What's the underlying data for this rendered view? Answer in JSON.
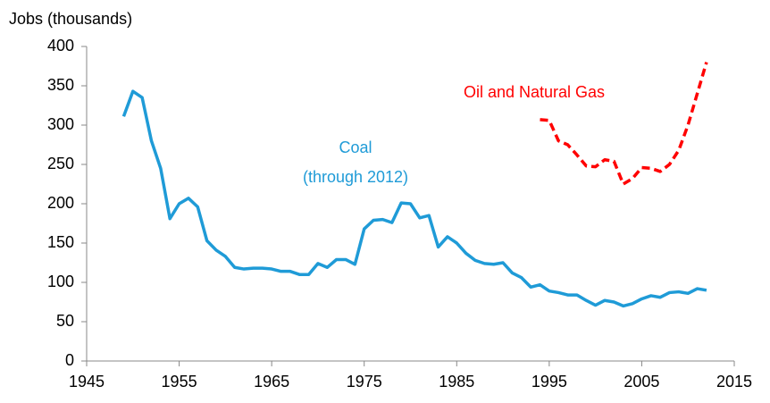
{
  "chart_data": {
    "type": "line",
    "y_label": "Jobs (thousands)",
    "x": [
      1949,
      1950,
      1951,
      1952,
      1953,
      1954,
      1955,
      1956,
      1957,
      1958,
      1959,
      1960,
      1961,
      1962,
      1963,
      1964,
      1965,
      1966,
      1967,
      1968,
      1969,
      1970,
      1971,
      1972,
      1973,
      1974,
      1975,
      1976,
      1977,
      1978,
      1979,
      1980,
      1981,
      1982,
      1983,
      1984,
      1985,
      1986,
      1987,
      1988,
      1989,
      1990,
      1991,
      1992,
      1993,
      1994,
      1995,
      1996,
      1997,
      1998,
      1999,
      2000,
      2001,
      2002,
      2003,
      2004,
      2005,
      2006,
      2007,
      2008,
      2009,
      2010,
      2011,
      2012
    ],
    "series": [
      {
        "name": "Coal",
        "note": "(through 2012)",
        "color": "#1f9bd7",
        "dashed": false,
        "values": [
          311,
          343,
          335,
          280,
          245,
          181,
          200,
          207,
          196,
          153,
          141,
          133,
          119,
          117,
          118,
          118,
          117,
          114,
          114,
          110,
          110,
          124,
          119,
          129,
          129,
          123,
          168,
          179,
          180,
          176,
          201,
          200,
          182,
          185,
          145,
          158,
          150,
          137,
          128,
          124,
          123,
          125,
          112,
          106,
          94,
          97,
          89,
          87,
          84,
          84,
          77,
          71,
          77,
          75,
          70,
          73,
          79,
          83,
          81,
          87,
          88,
          86,
          92,
          90
        ]
      },
      {
        "name": "Oil and Natural Gas",
        "color": "#ff0000",
        "dashed": true,
        "values": [
          null,
          null,
          null,
          null,
          null,
          null,
          null,
          null,
          null,
          null,
          null,
          null,
          null,
          null,
          null,
          null,
          null,
          null,
          null,
          null,
          null,
          null,
          null,
          null,
          null,
          null,
          null,
          null,
          null,
          null,
          null,
          null,
          null,
          null,
          null,
          null,
          null,
          null,
          null,
          null,
          null,
          null,
          null,
          null,
          null,
          307,
          306,
          280,
          275,
          262,
          248,
          247,
          256,
          254,
          225,
          232,
          246,
          245,
          241,
          250,
          268,
          300,
          340,
          380
        ]
      }
    ],
    "xlim": [
      1945,
      2015
    ],
    "xticks": [
      1945,
      1955,
      1965,
      1975,
      1985,
      1995,
      2005,
      2015
    ],
    "ylim": [
      0,
      400
    ],
    "yticks": [
      0,
      50,
      100,
      150,
      200,
      250,
      300,
      350,
      400
    ],
    "grid": false
  }
}
